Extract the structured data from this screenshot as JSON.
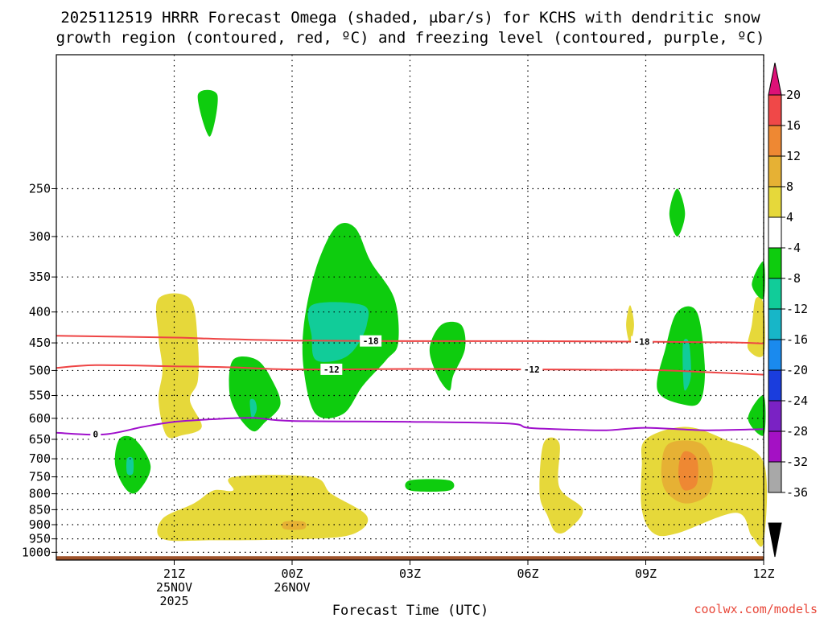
{
  "chart_data": {
    "type": "contour",
    "title_line1": "2025112519 HRRR Forecast Omega (shaded, μbar/s) for KCHS with dendritic snow",
    "title_line2": "growth region (contoured, red, ºC) and freezing level (contoured, purple, ºC)",
    "xlabel": "Forecast Time (UTC)",
    "ylabel": "",
    "credit": "coolwx.com/models",
    "x_range_hours": [
      -3.0,
      15.0
    ],
    "y_range_hpa": [
      1030,
      150
    ],
    "x_ticks": [
      {
        "hour": 0,
        "lines": [
          "21Z",
          "25NOV",
          "2025"
        ]
      },
      {
        "hour": 3,
        "lines": [
          "00Z",
          "26NOV"
        ]
      },
      {
        "hour": 6,
        "lines": [
          "03Z"
        ]
      },
      {
        "hour": 9,
        "lines": [
          "06Z"
        ]
      },
      {
        "hour": 12,
        "lines": [
          "09Z"
        ]
      },
      {
        "hour": 15,
        "lines": [
          "12Z"
        ]
      }
    ],
    "y_ticks": [
      "250",
      "300",
      "350",
      "400",
      "450",
      "500",
      "550",
      "600",
      "650",
      "700",
      "750",
      "800",
      "850",
      "900",
      "950",
      "1000"
    ],
    "colorbar": {
      "labels": [
        "20",
        "16",
        "12",
        "8",
        "4",
        "-4",
        "-8",
        "-12",
        "-16",
        "-20",
        "-24",
        "-28",
        "-32",
        "-36"
      ],
      "colors": [
        "#dd1177",
        "#f04848",
        "#ee8833",
        "#e6b134",
        "#e6d83a",
        "#ffffff",
        "#0ecc0e",
        "#11cc99",
        "#17b6c8",
        "#1a8aee",
        "#1a3ddd",
        "#7a22c4",
        "#a411c4",
        "#a8a8a8",
        "#000000"
      ]
    },
    "dendritic_contours": [
      {
        "level": -18,
        "label": "-18",
        "color": "#ee4444",
        "points": [
          [
            -3.0,
            438
          ],
          [
            0.0,
            441
          ],
          [
            1.0,
            443
          ],
          [
            3.0,
            446
          ],
          [
            6.0,
            447
          ],
          [
            9.0,
            447
          ],
          [
            12.0,
            448
          ],
          [
            14.0,
            449
          ],
          [
            15.0,
            451
          ]
        ],
        "label_hours": [
          5.0,
          11.9
        ]
      },
      {
        "level": -12,
        "label": "-12",
        "color": "#ee4444",
        "points": [
          [
            -3.0,
            495
          ],
          [
            -2.0,
            490
          ],
          [
            0.0,
            492
          ],
          [
            1.5,
            494
          ],
          [
            3.0,
            498
          ],
          [
            6.0,
            497
          ],
          [
            9.0,
            498
          ],
          [
            12.0,
            499
          ],
          [
            13.5,
            503
          ],
          [
            15.0,
            508
          ]
        ],
        "label_hours": [
          4.0,
          9.1
        ]
      }
    ],
    "freezing_level": {
      "level": 0,
      "label": "0",
      "color": "#a011cc",
      "points": [
        [
          -3.0,
          634
        ],
        [
          -1.8,
          638
        ],
        [
          -0.8,
          620
        ],
        [
          0.0,
          608
        ],
        [
          1.0,
          602
        ],
        [
          2.0,
          599
        ],
        [
          3.0,
          606
        ],
        [
          6.0,
          608
        ],
        [
          8.5,
          612
        ],
        [
          9.0,
          622
        ],
        [
          10.0,
          626
        ],
        [
          11.0,
          628
        ],
        [
          12.0,
          622
        ],
        [
          13.5,
          628
        ],
        [
          15.0,
          625
        ]
      ],
      "label_hours": [
        -2.0
      ]
    },
    "omega_regions": [
      {
        "name": "Downward motion 4-8 near 21Z upper",
        "value_range": "4 to 8",
        "color": "#e6d83a",
        "points": [
          [
            -0.4,
            380
          ],
          [
            0.4,
            380
          ],
          [
            0.6,
            450
          ],
          [
            0.6,
            520
          ],
          [
            0.4,
            560
          ],
          [
            0.7,
            620
          ],
          [
            0.2,
            640
          ],
          [
            -0.2,
            640
          ],
          [
            -0.4,
            560
          ],
          [
            -0.3,
            500
          ],
          [
            -0.4,
            440
          ]
        ]
      },
      {
        "name": "Upward motion -4 to -8 near 00Z",
        "value_range": "-4 to -8",
        "color": "#0ecc0e",
        "points": [
          [
            1.5,
            480
          ],
          [
            2.1,
            480
          ],
          [
            2.5,
            520
          ],
          [
            2.7,
            570
          ],
          [
            2.3,
            610
          ],
          [
            2.0,
            630
          ],
          [
            1.6,
            590
          ],
          [
            1.4,
            540
          ]
        ]
      },
      {
        "name": "Upward motion -8 to -12 near 00Z",
        "value_range": "-8 to -12",
        "color": "#11cc99",
        "points": [
          [
            1.93,
            560
          ],
          [
            2.05,
            560
          ],
          [
            2.1,
            580
          ],
          [
            2.0,
            600
          ],
          [
            1.95,
            590
          ]
        ]
      },
      {
        "name": "Upward motion -4 to -8 near 03Z",
        "value_range": "-4 to -8",
        "color": "#0ecc0e",
        "points": [
          [
            4.6,
            290
          ],
          [
            5.0,
            330
          ],
          [
            5.6,
            380
          ],
          [
            5.7,
            450
          ],
          [
            5.4,
            480
          ],
          [
            4.8,
            530
          ],
          [
            4.3,
            590
          ],
          [
            3.6,
            590
          ],
          [
            3.3,
            500
          ],
          [
            3.3,
            420
          ],
          [
            3.6,
            340
          ],
          [
            4.1,
            290
          ]
        ]
      },
      {
        "name": "Upward motion -8 to -12 near 03Z",
        "value_range": "-8 to -12",
        "color": "#11cc99",
        "points": [
          [
            3.5,
            390
          ],
          [
            4.8,
            390
          ],
          [
            4.9,
            420
          ],
          [
            4.6,
            460
          ],
          [
            4.2,
            480
          ],
          [
            3.6,
            480
          ],
          [
            3.5,
            440
          ]
        ]
      },
      {
        "name": "Upward motion -4 to -8 near 05Z",
        "value_range": "-4 to -8",
        "color": "#0ecc0e",
        "points": [
          [
            6.8,
            420
          ],
          [
            7.3,
            420
          ],
          [
            7.4,
            460
          ],
          [
            7.1,
            510
          ],
          [
            7.0,
            540
          ],
          [
            6.7,
            510
          ],
          [
            6.5,
            460
          ]
        ]
      },
      {
        "name": "Upward motion -4 to -8 near 20Z low",
        "value_range": "-4 to -8",
        "color": "#0ecc0e",
        "points": [
          [
            -1.4,
            650
          ],
          [
            -1.0,
            650
          ],
          [
            -0.6,
            720
          ],
          [
            -0.9,
            790
          ],
          [
            -1.2,
            790
          ],
          [
            -1.5,
            720
          ]
        ]
      },
      {
        "name": "Upward motion -8 to -12 near 20Z low",
        "value_range": "-8 to -12",
        "color": "#11cc99",
        "points": [
          [
            -1.2,
            700
          ],
          [
            -1.05,
            700
          ],
          [
            -1.05,
            740
          ],
          [
            -1.2,
            740
          ]
        ]
      },
      {
        "name": "Upward motion -4 to -8 near 22Z top",
        "value_range": "-4 to -8",
        "color": "#0ecc0e",
        "points": [
          [
            0.6,
            175
          ],
          [
            1.1,
            175
          ],
          [
            0.9,
            205
          ]
        ]
      },
      {
        "name": "Upward motion -4 to -8 near 04Z low",
        "value_range": "-4 to -8",
        "color": "#0ecc0e",
        "points": [
          [
            6.0,
            760
          ],
          [
            7.0,
            760
          ],
          [
            7.0,
            790
          ],
          [
            6.0,
            790
          ]
        ]
      },
      {
        "name": "Downward motion 4-8 near 00Z low",
        "value_range": "4 to 8",
        "color": "#e6d83a",
        "points": [
          [
            1.0,
            790
          ],
          [
            1.5,
            790
          ],
          [
            1.5,
            750
          ],
          [
            3.5,
            750
          ],
          [
            4.0,
            800
          ],
          [
            4.9,
            870
          ],
          [
            4.6,
            930
          ],
          [
            3.5,
            950
          ],
          [
            1.0,
            955
          ],
          [
            -0.3,
            950
          ],
          [
            -0.3,
            880
          ],
          [
            0.5,
            830
          ]
        ]
      },
      {
        "name": "Downward motion 8-12 near 00Z low",
        "value_range": "8 to 12",
        "color": "#e6b134",
        "points": [
          [
            2.8,
            890
          ],
          [
            3.3,
            890
          ],
          [
            3.3,
            915
          ],
          [
            2.8,
            915
          ]
        ]
      },
      {
        "name": "Downward motion 4-8 near 08Z",
        "value_range": "4 to 8",
        "color": "#e6d83a",
        "points": [
          [
            9.4,
            660
          ],
          [
            9.8,
            660
          ],
          [
            9.8,
            780
          ],
          [
            10.4,
            850
          ],
          [
            10.0,
            920
          ],
          [
            9.7,
            925
          ],
          [
            9.5,
            870
          ],
          [
            9.3,
            800
          ]
        ]
      },
      {
        "name": "Downward motion 4-8 near 11Z",
        "value_range": "4 to 8",
        "color": "#e6d83a",
        "points": [
          [
            12.0,
            650
          ],
          [
            13.0,
            620
          ],
          [
            14.0,
            650
          ],
          [
            15.0,
            710
          ],
          [
            15.0,
            960
          ],
          [
            14.7,
            940
          ],
          [
            14.3,
            860
          ],
          [
            12.8,
            930
          ],
          [
            12.2,
            930
          ],
          [
            11.9,
            850
          ],
          [
            11.9,
            720
          ]
        ]
      },
      {
        "name": "Downward motion 8-12 near 11Z",
        "value_range": "8 to 12",
        "color": "#e6b134",
        "points": [
          [
            12.6,
            660
          ],
          [
            13.4,
            660
          ],
          [
            13.7,
            720
          ],
          [
            13.6,
            800
          ],
          [
            13.0,
            830
          ],
          [
            12.5,
            790
          ],
          [
            12.4,
            720
          ]
        ]
      },
      {
        "name": "Downward motion 12-16 near 11Z",
        "value_range": "12 to 16",
        "color": "#ee8833",
        "points": [
          [
            13.0,
            680
          ],
          [
            13.3,
            700
          ],
          [
            13.3,
            770
          ],
          [
            13.0,
            790
          ],
          [
            12.85,
            760
          ],
          [
            12.85,
            710
          ]
        ]
      },
      {
        "name": "Upward motion -4 to -8 near 11Z",
        "value_range": "-4 to -8",
        "color": "#0ecc0e",
        "points": [
          [
            12.8,
            400
          ],
          [
            13.3,
            400
          ],
          [
            13.5,
            490
          ],
          [
            13.4,
            560
          ],
          [
            13.0,
            570
          ],
          [
            12.3,
            540
          ],
          [
            12.5,
            460
          ]
        ]
      },
      {
        "name": "Upward motion -8 to -12 near 11Z",
        "value_range": "-8 to -12",
        "color": "#11cc99",
        "points": [
          [
            12.95,
            450
          ],
          [
            13.1,
            450
          ],
          [
            13.15,
            510
          ],
          [
            13.0,
            540
          ],
          [
            12.95,
            510
          ]
        ]
      },
      {
        "name": "Upward motion -4 to -8 near 11Z top",
        "value_range": "-4 to -8",
        "color": "#0ecc0e",
        "points": [
          [
            12.8,
            250
          ],
          [
            13.0,
            275
          ],
          [
            12.8,
            300
          ],
          [
            12.6,
            275
          ]
        ]
      },
      {
        "name": "Downward motion 4-8 near 12Z upper",
        "value_range": "4 to 8",
        "color": "#e6d83a",
        "points": [
          [
            14.8,
            380
          ],
          [
            15.0,
            390
          ],
          [
            15.0,
            470
          ],
          [
            14.6,
            460
          ],
          [
            14.7,
            420
          ]
        ]
      },
      {
        "name": "Upward motion -4 to -8 right edge 350",
        "value_range": "-4 to -8",
        "color": "#0ecc0e",
        "points": [
          [
            15.0,
            330
          ],
          [
            15.0,
            380
          ],
          [
            14.7,
            360
          ]
        ]
      },
      {
        "name": "Upward motion -4 to -8 right edge 600",
        "value_range": "-4 to -8",
        "color": "#0ecc0e",
        "points": [
          [
            15.0,
            550
          ],
          [
            15.0,
            640
          ],
          [
            14.6,
            600
          ]
        ]
      },
      {
        "name": "Downward motion 4-8 near 10Z small",
        "value_range": "4 to 8",
        "color": "#e6d83a",
        "points": [
          [
            11.6,
            390
          ],
          [
            11.7,
            420
          ],
          [
            11.6,
            450
          ],
          [
            11.5,
            420
          ]
        ]
      }
    ],
    "ground": {
      "color": "#9e522a",
      "top_hpa": 1015
    }
  }
}
